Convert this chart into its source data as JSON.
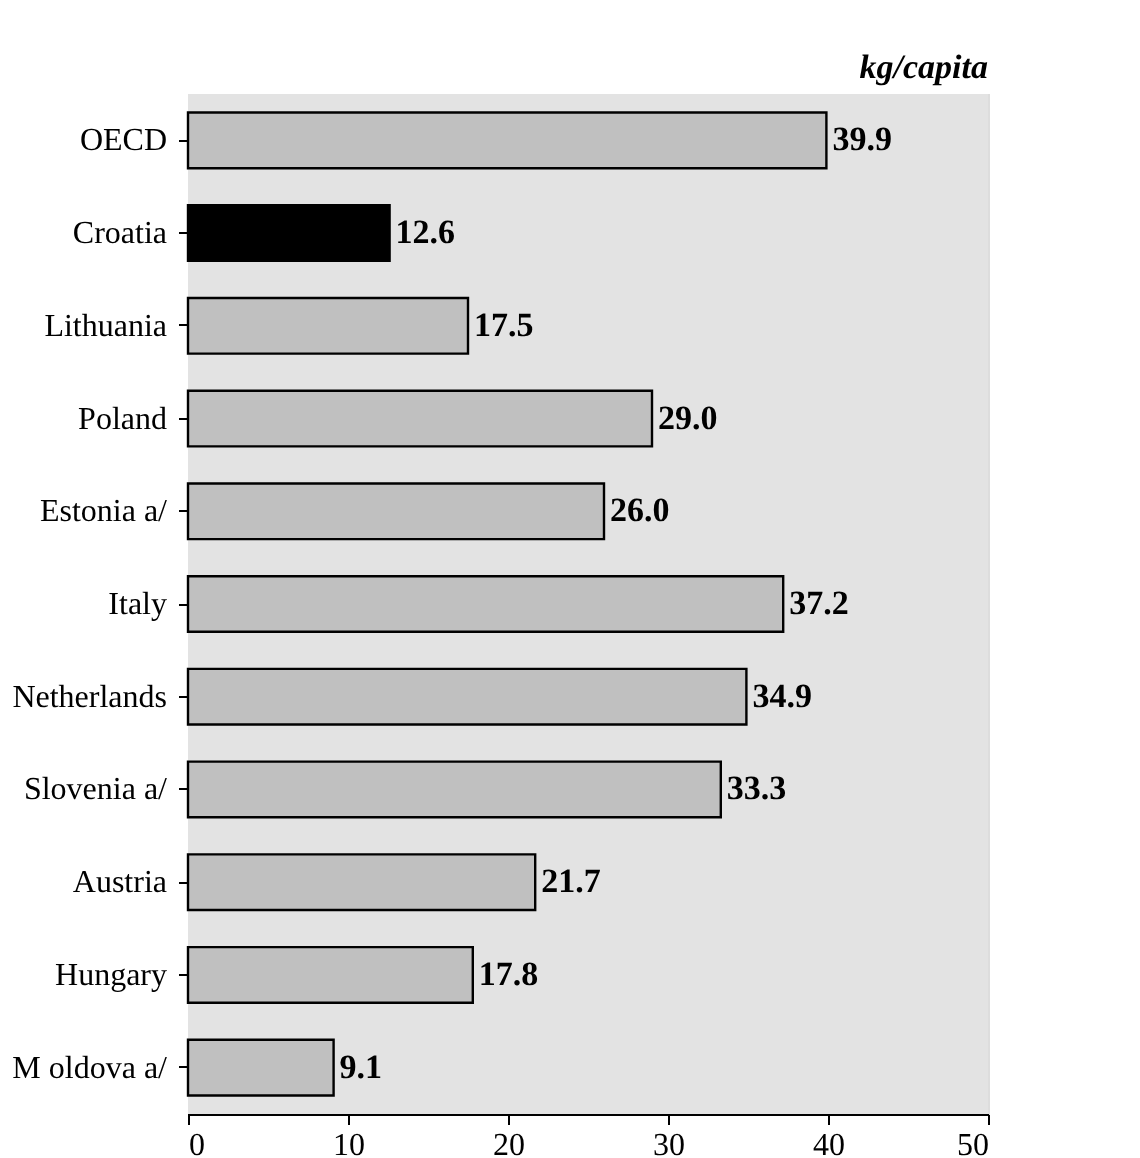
{
  "chart_data": {
    "type": "bar",
    "orientation": "horizontal",
    "xlabel": "kg/capita",
    "categories": [
      "OECD",
      "Croatia",
      "Lithuania",
      "Poland",
      "Estonia a/",
      "Italy",
      "Netherlands",
      "Slovenia a/",
      "Austria",
      "Hungary",
      "M oldova a/"
    ],
    "values": [
      39.9,
      12.6,
      17.5,
      29.0,
      26.0,
      37.2,
      34.9,
      33.3,
      21.7,
      17.8,
      9.1
    ],
    "colors": [
      "#c0c0c0",
      "#000000",
      "#c0c0c0",
      "#c0c0c0",
      "#c0c0c0",
      "#c0c0c0",
      "#c0c0c0",
      "#c0c0c0",
      "#c0c0c0",
      "#c0c0c0",
      "#c0c0c0"
    ],
    "value_labels": [
      "39.9",
      "12.6",
      "17.5",
      "29.0",
      "26.0",
      "37.2",
      "34.9",
      "33.3",
      "21.7",
      "17.8",
      "9.1"
    ],
    "xlim": [
      0,
      50
    ],
    "xticks": [
      0,
      10,
      20,
      30,
      40,
      50
    ]
  }
}
